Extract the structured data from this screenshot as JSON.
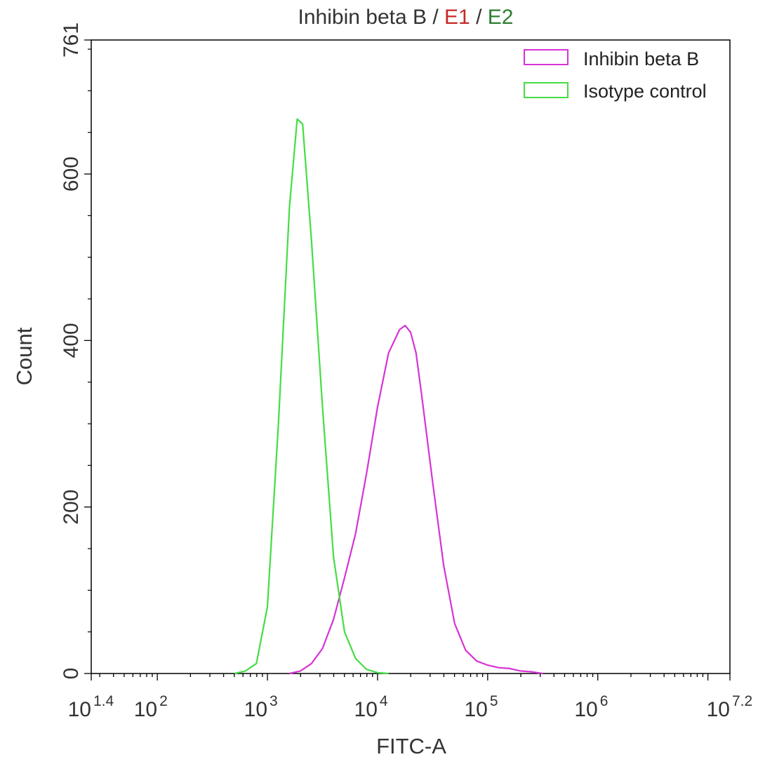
{
  "chart_data": {
    "type": "line",
    "title_parts": [
      {
        "text": "Inhibin beta B",
        "color": "#333333"
      },
      {
        "text": " / ",
        "color": "#333333"
      },
      {
        "text": "E1",
        "color": "#c62828"
      },
      {
        "text": " / ",
        "color": "#333333"
      },
      {
        "text": "E2",
        "color": "#2e7d32"
      }
    ],
    "xlabel": "FITC-A",
    "ylabel": "Count",
    "x_scale": "log10",
    "xlim_exponent": [
      1.4,
      7.2
    ],
    "ylim": [
      0,
      761
    ],
    "x_ticks": [
      {
        "base": "10",
        "exp": "1.4"
      },
      {
        "base": "10",
        "exp": "2"
      },
      {
        "base": "10",
        "exp": "3"
      },
      {
        "base": "10",
        "exp": "4"
      },
      {
        "base": "10",
        "exp": "5"
      },
      {
        "base": "10",
        "exp": "6"
      },
      {
        "base": "10",
        "exp": "7.2"
      }
    ],
    "y_ticks": [
      "0",
      "200",
      "400",
      "600",
      "761"
    ],
    "legend_position": "top-right",
    "grid": false,
    "series": [
      {
        "name": "Inhibin beta B",
        "color": "#d633d6",
        "points": [
          [
            3.2,
            0
          ],
          [
            3.3,
            3
          ],
          [
            3.4,
            12
          ],
          [
            3.5,
            30
          ],
          [
            3.6,
            65
          ],
          [
            3.7,
            115
          ],
          [
            3.8,
            168
          ],
          [
            3.9,
            240
          ],
          [
            4.0,
            320
          ],
          [
            4.1,
            385
          ],
          [
            4.2,
            413
          ],
          [
            4.25,
            418
          ],
          [
            4.3,
            410
          ],
          [
            4.35,
            385
          ],
          [
            4.4,
            335
          ],
          [
            4.5,
            230
          ],
          [
            4.6,
            130
          ],
          [
            4.7,
            60
          ],
          [
            4.8,
            28
          ],
          [
            4.9,
            15
          ],
          [
            5.0,
            10
          ],
          [
            5.1,
            7
          ],
          [
            5.2,
            6
          ],
          [
            5.3,
            3
          ],
          [
            5.4,
            2
          ],
          [
            5.45,
            1
          ],
          [
            5.5,
            0
          ]
        ]
      },
      {
        "name": "Isotype control",
        "color": "#44dd44",
        "points": [
          [
            2.7,
            0
          ],
          [
            2.8,
            3
          ],
          [
            2.9,
            12
          ],
          [
            3.0,
            80
          ],
          [
            3.1,
            300
          ],
          [
            3.2,
            560
          ],
          [
            3.27,
            666
          ],
          [
            3.32,
            660
          ],
          [
            3.4,
            520
          ],
          [
            3.5,
            320
          ],
          [
            3.6,
            140
          ],
          [
            3.7,
            50
          ],
          [
            3.8,
            18
          ],
          [
            3.9,
            5
          ],
          [
            4.0,
            1
          ],
          [
            4.1,
            0
          ]
        ]
      }
    ]
  }
}
